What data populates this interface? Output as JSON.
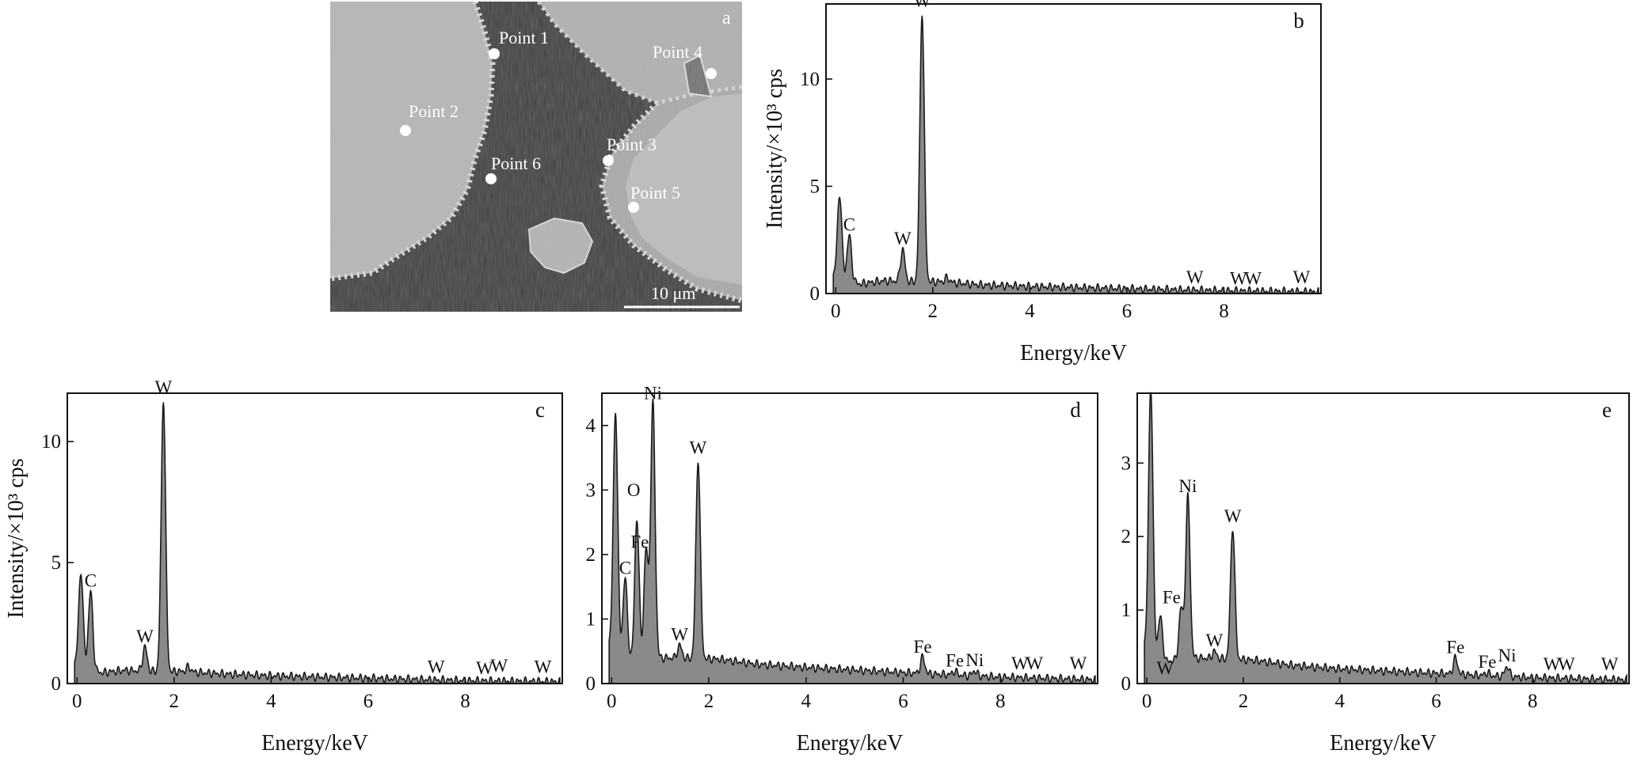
{
  "sem": {
    "panel_label": "a",
    "scale_bar": "10 μm",
    "points": [
      {
        "name": "Point 1"
      },
      {
        "name": "Point 2"
      },
      {
        "name": "Point 3"
      },
      {
        "name": "Point 4"
      },
      {
        "name": "Point 5"
      },
      {
        "name": "Point 6"
      }
    ]
  },
  "chart_data": [
    {
      "id": "b",
      "type": "area",
      "panel_label": "b",
      "xlabel": "Energy/keV",
      "ylabel": "Intensity/×10³ cps",
      "xlim": [
        -0.2,
        10.0
      ],
      "ylim": [
        0,
        13.5
      ],
      "x_ticks": [
        0,
        2,
        4,
        6,
        8
      ],
      "y_ticks": [
        0,
        5,
        10
      ],
      "baseline": [
        [
          0.0,
          0.8
        ],
        [
          0.5,
          0.45
        ],
        [
          1.0,
          0.6
        ],
        [
          1.5,
          0.55
        ],
        [
          2.2,
          0.55
        ],
        [
          3.0,
          0.4
        ],
        [
          4.0,
          0.33
        ],
        [
          6.0,
          0.22
        ],
        [
          8.0,
          0.13
        ],
        [
          9.9,
          0.08
        ]
      ],
      "peaks": [
        {
          "x": 0.08,
          "height": 3.9,
          "label": ""
        },
        {
          "x": 0.28,
          "height": 2.1,
          "label": "C"
        },
        {
          "x": 1.38,
          "height": 1.5,
          "label": "W"
        },
        {
          "x": 1.78,
          "height": 12.6,
          "label": "W"
        },
        {
          "x": 2.3,
          "height": 0.2,
          "label": ""
        }
      ],
      "annotations": [
        {
          "x": 7.4,
          "y": 0.25,
          "label": "W"
        },
        {
          "x": 8.3,
          "y": 0.2,
          "label": "W"
        },
        {
          "x": 8.6,
          "y": 0.2,
          "label": "W"
        },
        {
          "x": 9.6,
          "y": 0.25,
          "label": "W"
        }
      ]
    },
    {
      "id": "c",
      "type": "area",
      "panel_label": "c",
      "xlabel": "Energy/keV",
      "ylabel": "Intensity/×10³ cps",
      "xlim": [
        -0.2,
        10.0
      ],
      "ylim": [
        0,
        12.0
      ],
      "x_ticks": [
        0,
        2,
        4,
        6,
        8
      ],
      "y_ticks": [
        0,
        5,
        10
      ],
      "baseline": [
        [
          0.0,
          0.8
        ],
        [
          0.5,
          0.45
        ],
        [
          1.0,
          0.55
        ],
        [
          1.5,
          0.5
        ],
        [
          2.2,
          0.5
        ],
        [
          3.0,
          0.4
        ],
        [
          4.0,
          0.32
        ],
        [
          6.0,
          0.22
        ],
        [
          8.0,
          0.12
        ],
        [
          9.9,
          0.08
        ]
      ],
      "peaks": [
        {
          "x": 0.08,
          "height": 3.9,
          "label": ""
        },
        {
          "x": 0.28,
          "height": 3.2,
          "label": "C"
        },
        {
          "x": 1.4,
          "height": 1.0,
          "label": "W"
        },
        {
          "x": 1.78,
          "height": 11.3,
          "label": "W"
        },
        {
          "x": 2.3,
          "height": 0.2,
          "label": ""
        }
      ],
      "annotations": [
        {
          "x": 7.4,
          "y": 0.25,
          "label": "W"
        },
        {
          "x": 8.4,
          "y": 0.2,
          "label": "W"
        },
        {
          "x": 8.7,
          "y": 0.3,
          "label": "W"
        },
        {
          "x": 9.6,
          "y": 0.25,
          "label": "W"
        }
      ]
    },
    {
      "id": "d",
      "type": "area",
      "panel_label": "d",
      "xlabel": "Energy/keV",
      "ylabel": "",
      "xlim": [
        -0.2,
        10.0
      ],
      "ylim": [
        0,
        4.5
      ],
      "x_ticks": [
        0,
        2,
        4,
        6,
        8
      ],
      "y_ticks": [
        0,
        1,
        2,
        3,
        4
      ],
      "baseline": [
        [
          0.0,
          0.6
        ],
        [
          0.4,
          0.35
        ],
        [
          1.0,
          0.4
        ],
        [
          2.2,
          0.38
        ],
        [
          3.0,
          0.3
        ],
        [
          4.0,
          0.25
        ],
        [
          6.0,
          0.17
        ],
        [
          8.0,
          0.1
        ],
        [
          9.9,
          0.06
        ]
      ],
      "peaks": [
        {
          "x": 0.08,
          "height": 3.7,
          "label": ""
        },
        {
          "x": 0.28,
          "height": 1.2,
          "label": "C"
        },
        {
          "x": 0.52,
          "height": 2.2,
          "label": "O"
        },
        {
          "x": 0.71,
          "height": 1.7,
          "label": "Fe"
        },
        {
          "x": 0.85,
          "height": 3.95,
          "label": "Ni"
        },
        {
          "x": 1.4,
          "height": 0.2,
          "label": "W"
        },
        {
          "x": 1.78,
          "height": 3.1,
          "label": "W"
        },
        {
          "x": 6.4,
          "height": 0.25,
          "label": "Fe"
        },
        {
          "x": 7.06,
          "height": 0.06,
          "label": "Fe"
        },
        {
          "x": 7.47,
          "height": 0.08,
          "label": "Ni"
        }
      ],
      "annotations": [
        {
          "x": 8.4,
          "y": 0.15,
          "label": "W"
        },
        {
          "x": 8.7,
          "y": 0.15,
          "label": "W"
        },
        {
          "x": 9.6,
          "y": 0.15,
          "label": "W"
        }
      ]
    },
    {
      "id": "e",
      "type": "area",
      "panel_label": "e",
      "xlabel": "Energy/keV",
      "ylabel": "",
      "xlim": [
        -0.2,
        10.0
      ],
      "ylim": [
        0,
        3.95
      ],
      "x_ticks": [
        0,
        2,
        4,
        6,
        8
      ],
      "y_ticks": [
        0,
        1,
        2,
        3
      ],
      "baseline": [
        [
          0.0,
          0.5
        ],
        [
          0.4,
          0.3
        ],
        [
          1.0,
          0.35
        ],
        [
          2.2,
          0.32
        ],
        [
          3.0,
          0.25
        ],
        [
          4.0,
          0.2
        ],
        [
          6.0,
          0.14
        ],
        [
          8.0,
          0.08
        ],
        [
          9.9,
          0.05
        ]
      ],
      "peaks": [
        {
          "x": 0.08,
          "height": 3.6,
          "label": ""
        },
        {
          "x": 0.28,
          "height": 0.55,
          "label": "W"
        },
        {
          "x": 0.71,
          "height": 0.7,
          "label": "Fe"
        },
        {
          "x": 0.85,
          "height": 2.2,
          "label": "Ni"
        },
        {
          "x": 1.4,
          "height": 0.1,
          "label": "W"
        },
        {
          "x": 1.78,
          "height": 1.8,
          "label": "W"
        },
        {
          "x": 6.4,
          "height": 0.22,
          "label": "Fe"
        },
        {
          "x": 7.06,
          "height": 0.04,
          "label": "Fe"
        },
        {
          "x": 7.47,
          "height": 0.14,
          "label": "Ni"
        }
      ],
      "annotations": [
        {
          "x": 8.4,
          "y": 0.12,
          "label": "W"
        },
        {
          "x": 8.7,
          "y": 0.12,
          "label": "W"
        },
        {
          "x": 9.6,
          "y": 0.12,
          "label": "W"
        }
      ]
    }
  ]
}
